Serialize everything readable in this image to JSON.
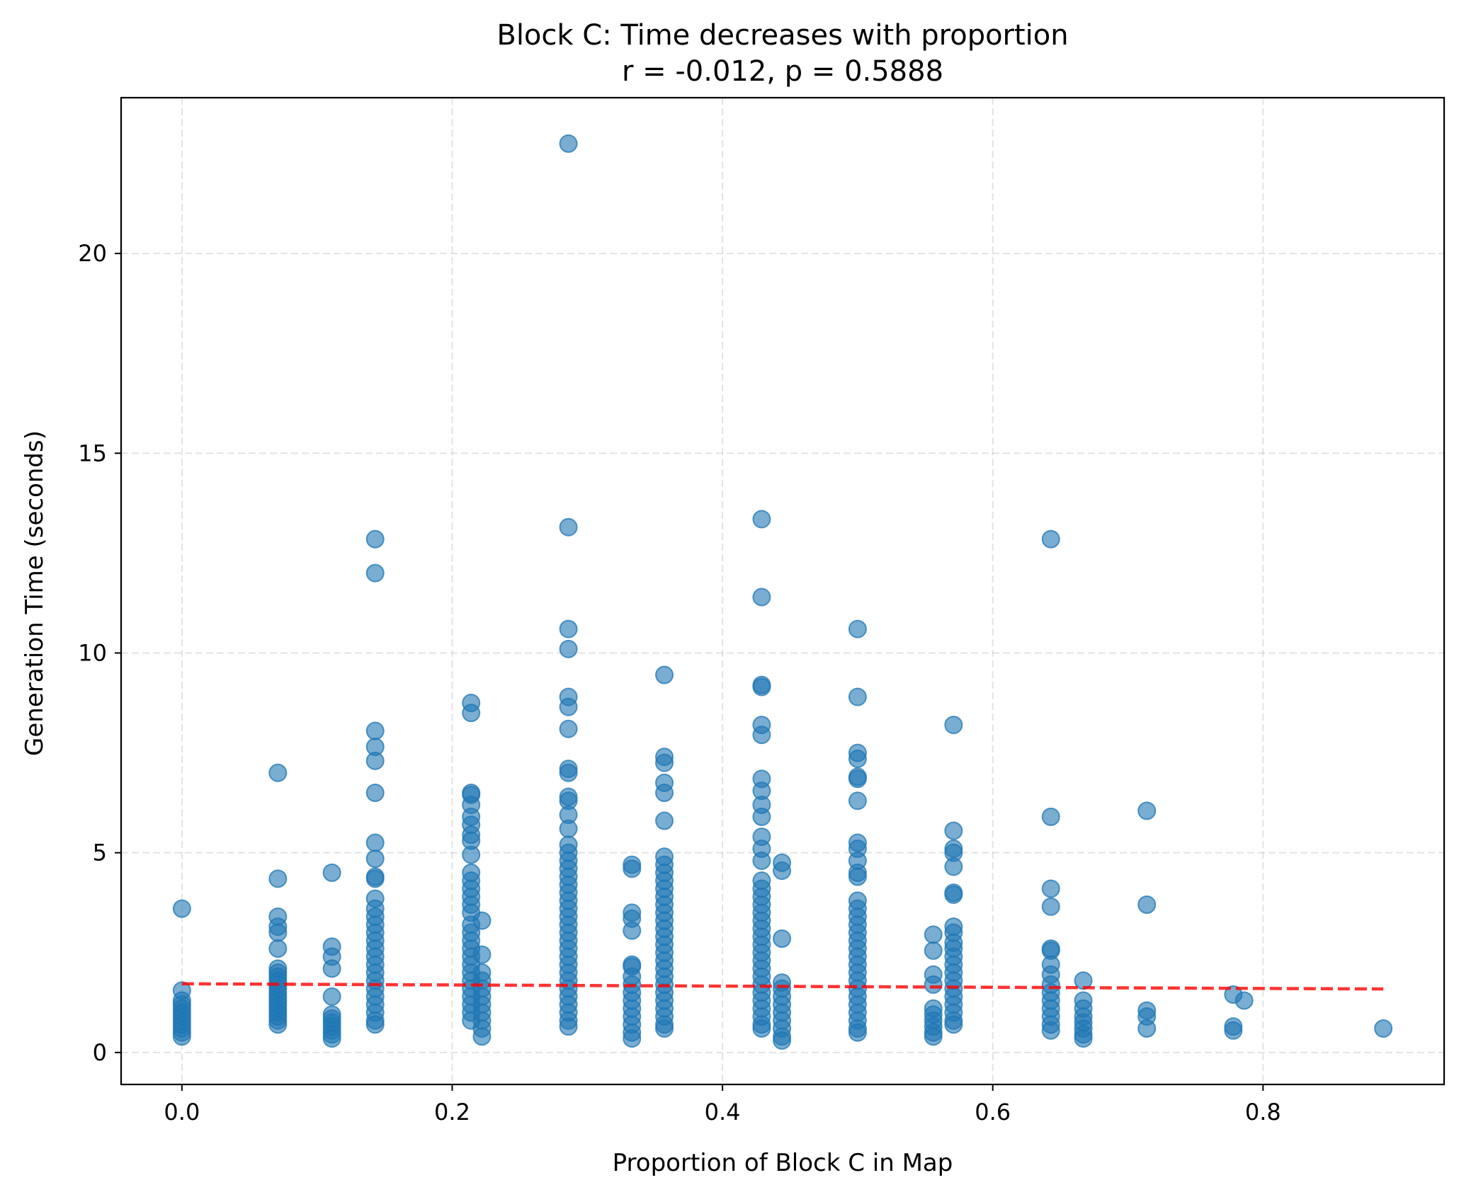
{
  "chart_data": {
    "type": "scatter",
    "title": "Block C: Time decreases with proportion",
    "subtitle": "r = -0.012, p = 0.5888",
    "xlabel": "Proportion of Block C in Map",
    "ylabel": "Generation Time (seconds)",
    "xlim": [
      -0.045,
      0.934
    ],
    "ylim": [
      -0.8,
      23.9
    ],
    "xticks": [
      0.0,
      0.2,
      0.4,
      0.6,
      0.8
    ],
    "xtick_labels": [
      "0.0",
      "0.2",
      "0.4",
      "0.6",
      "0.8"
    ],
    "yticks": [
      0,
      5,
      10,
      15,
      20
    ],
    "ytick_labels": [
      "0",
      "5",
      "10",
      "15",
      "20"
    ],
    "grid": true,
    "point_color": "#1f77b4",
    "trend_color": "#ff0000",
    "trend_line": {
      "x": [
        0.0,
        0.889
      ],
      "y": [
        1.72,
        1.59
      ]
    },
    "groups": [
      {
        "x": 0.0,
        "points": [
          3.6,
          1.55,
          1.3,
          1.2,
          1.1,
          1.0,
          0.9,
          0.8,
          0.7,
          0.6,
          0.5,
          0.4
        ]
      },
      {
        "x": 0.071,
        "points": [
          7.0,
          4.35,
          3.4,
          3.15,
          3.0,
          2.6,
          2.1,
          2.0,
          1.9,
          1.8,
          1.7,
          1.6,
          1.5,
          1.4,
          1.3,
          1.2,
          1.1,
          1.0,
          0.9,
          0.8,
          0.7
        ]
      },
      {
        "x": 0.111,
        "points": [
          4.5,
          2.65,
          2.4,
          2.1,
          1.4,
          0.95,
          0.85,
          0.75,
          0.65,
          0.55,
          0.45,
          0.35
        ]
      },
      {
        "x": 0.143,
        "points": [
          12.85,
          12.0,
          8.05,
          7.65,
          7.3,
          6.5,
          5.25,
          4.85,
          4.4,
          4.35,
          3.85,
          3.6,
          3.4,
          3.2,
          3.0,
          2.8,
          2.6,
          2.4,
          2.2,
          2.0,
          1.8,
          1.6,
          1.4,
          1.2,
          1.0,
          0.8,
          0.7
        ]
      },
      {
        "x": 0.214,
        "points": [
          8.75,
          8.5,
          6.5,
          6.45,
          6.2,
          5.9,
          5.7,
          5.45,
          5.3,
          4.95,
          4.5,
          4.3,
          4.1,
          3.9,
          3.7,
          3.5,
          3.2,
          3.0,
          2.8,
          2.6,
          2.4,
          2.2,
          2.0,
          1.8,
          1.6,
          1.4,
          1.2,
          1.0,
          0.8
        ]
      },
      {
        "x": 0.222,
        "points": [
          3.3,
          2.45,
          2.0,
          1.8,
          1.6,
          1.4,
          1.2,
          1.0,
          0.8,
          0.6,
          0.4
        ]
      },
      {
        "x": 0.286,
        "points": [
          22.75,
          13.15,
          10.6,
          10.1,
          8.9,
          8.65,
          8.1,
          7.1,
          7.0,
          6.4,
          6.3,
          5.95,
          5.6,
          5.2,
          5.0,
          4.8,
          4.6,
          4.4,
          4.2,
          4.0,
          3.8,
          3.6,
          3.4,
          3.2,
          3.0,
          2.8,
          2.6,
          2.4,
          2.2,
          2.0,
          1.8,
          1.6,
          1.4,
          1.2,
          1.0,
          0.8,
          0.65
        ]
      },
      {
        "x": 0.333,
        "points": [
          4.7,
          4.6,
          3.5,
          3.35,
          3.05,
          2.2,
          2.15,
          1.9,
          1.7,
          1.5,
          1.3,
          1.1,
          0.9,
          0.7,
          0.5,
          0.35
        ]
      },
      {
        "x": 0.357,
        "points": [
          9.45,
          7.4,
          7.25,
          6.75,
          6.5,
          5.8,
          4.9,
          4.7,
          4.5,
          4.3,
          4.1,
          3.9,
          3.7,
          3.5,
          3.3,
          3.1,
          2.9,
          2.7,
          2.5,
          2.3,
          2.1,
          1.9,
          1.7,
          1.5,
          1.3,
          1.1,
          0.9,
          0.7,
          0.6
        ]
      },
      {
        "x": 0.429,
        "points": [
          13.35,
          11.4,
          9.2,
          9.15,
          8.2,
          7.95,
          6.85,
          6.55,
          6.2,
          5.9,
          5.4,
          5.1,
          4.8,
          4.3,
          4.1,
          3.9,
          3.7,
          3.5,
          3.3,
          3.1,
          2.9,
          2.7,
          2.5,
          2.3,
          2.1,
          1.9,
          1.7,
          1.5,
          1.3,
          1.1,
          0.9,
          0.7,
          0.6
        ]
      },
      {
        "x": 0.444,
        "points": [
          4.75,
          4.55,
          2.85,
          1.75,
          1.6,
          1.4,
          1.2,
          1.0,
          0.8,
          0.6,
          0.4,
          0.3
        ]
      },
      {
        "x": 0.5,
        "points": [
          10.6,
          8.9,
          7.5,
          7.35,
          6.9,
          6.85,
          6.3,
          5.25,
          5.1,
          4.8,
          4.5,
          4.4,
          3.8,
          3.6,
          3.4,
          3.2,
          3.0,
          2.8,
          2.6,
          2.4,
          2.2,
          2.0,
          1.8,
          1.6,
          1.4,
          1.2,
          1.0,
          0.8,
          0.6,
          0.5
        ]
      },
      {
        "x": 0.556,
        "points": [
          2.95,
          2.55,
          1.95,
          1.7,
          1.1,
          0.95,
          0.8,
          0.65,
          0.5,
          0.4
        ]
      },
      {
        "x": 0.571,
        "points": [
          8.2,
          5.55,
          5.1,
          5.0,
          4.65,
          4.0,
          3.95,
          3.15,
          3.0,
          2.75,
          2.6,
          2.4,
          2.2,
          2.0,
          1.8,
          1.6,
          1.4,
          1.2,
          1.0,
          0.8,
          0.7
        ]
      },
      {
        "x": 0.643,
        "points": [
          12.85,
          5.9,
          4.1,
          3.65,
          2.6,
          2.55,
          2.2,
          1.95,
          1.7,
          1.5,
          1.3,
          1.1,
          0.9,
          0.7,
          0.55
        ]
      },
      {
        "x": 0.667,
        "points": [
          1.8,
          1.3,
          1.1,
          0.9,
          0.75,
          0.6,
          0.45,
          0.35
        ]
      },
      {
        "x": 0.714,
        "points": [
          6.05,
          3.7,
          1.05,
          0.9,
          0.6
        ]
      },
      {
        "x": 0.778,
        "points": [
          1.45,
          0.65,
          0.55
        ]
      },
      {
        "x": 0.786,
        "points": [
          1.3
        ]
      },
      {
        "x": 0.889,
        "points": [
          0.6
        ]
      }
    ]
  }
}
